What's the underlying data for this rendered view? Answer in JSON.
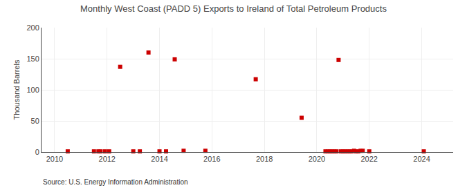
{
  "chart_data": {
    "type": "scatter",
    "title": "Monthly West Coast (PADD 5) Exports to Ireland of Total Petroleum Products",
    "ylabel": "Thousand Barrels",
    "annotations": [
      "Source: U.S. Energy Information Administration"
    ],
    "x": [
      2010.5,
      2011.5,
      2011.67,
      2011.75,
      2011.92,
      2012.08,
      2012.5,
      2013.0,
      2013.25,
      2013.58,
      2014.0,
      2014.25,
      2014.58,
      2014.92,
      2015.75,
      2017.67,
      2019.42,
      2020.33,
      2020.42,
      2020.5,
      2020.58,
      2020.67,
      2020.75,
      2020.83,
      2020.92,
      2021.0,
      2021.08,
      2021.17,
      2021.25,
      2021.33,
      2021.42,
      2021.5,
      2021.58,
      2021.67,
      2021.75,
      2022.0,
      2024.08
    ],
    "values": [
      1,
      1,
      1,
      1,
      1,
      1,
      137,
      1,
      1,
      160,
      1,
      1,
      149,
      2,
      2,
      117,
      55,
      1,
      1,
      1,
      1,
      1,
      1,
      148,
      1,
      1,
      1,
      1,
      1,
      1,
      2,
      1,
      1,
      2,
      2,
      1,
      1
    ],
    "color": "#cc0000",
    "marker": "square",
    "xlim": [
      2009.5,
      2025.2
    ],
    "xticks": [
      2010,
      2012,
      2014,
      2016,
      2018,
      2020,
      2022,
      2024
    ],
    "ylim": [
      0,
      200
    ],
    "yticks": [
      0,
      50,
      100,
      150,
      200
    ],
    "grid": true
  }
}
